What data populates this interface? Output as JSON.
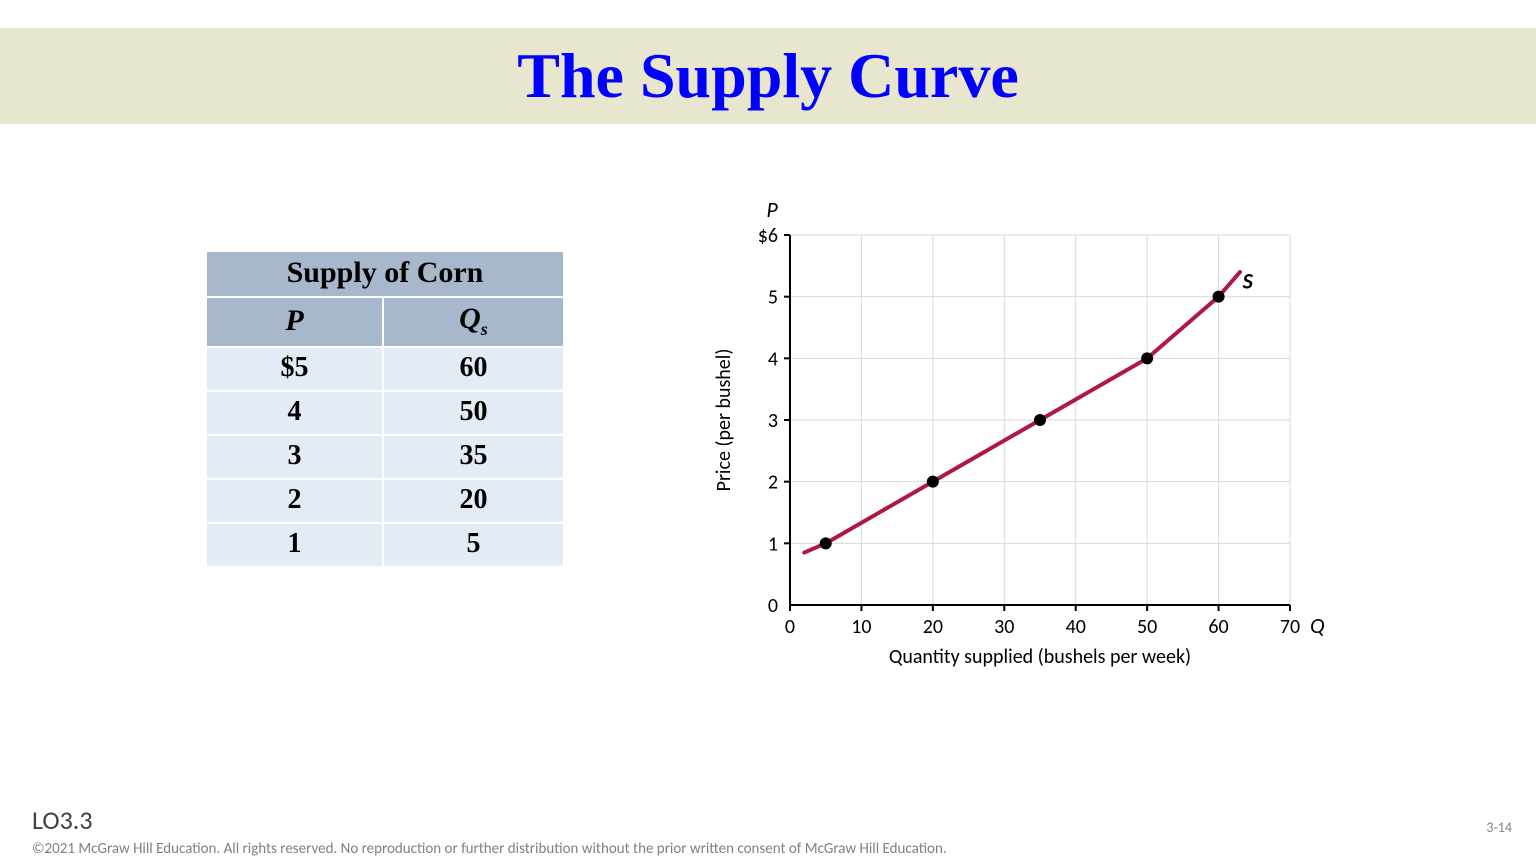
{
  "title": {
    "text": "The Supply Curve",
    "color": "#0000ff",
    "band_color": "#e8e6cf"
  },
  "table": {
    "title": "Supply of Corn",
    "header_p": "P",
    "header_q_base": "Q",
    "header_q_sub": "s",
    "header_bg": "#a7b7cc",
    "row_bg": "#e3ebf4",
    "text_color": "#000000",
    "rows": [
      {
        "p": "$5",
        "q": "60"
      },
      {
        "p": "4",
        "q": "50"
      },
      {
        "p": "3",
        "q": "35"
      },
      {
        "p": "2",
        "q": "20"
      },
      {
        "p": "1",
        "q": "5"
      }
    ]
  },
  "chart": {
    "type": "line",
    "series_label": "S",
    "p_axis_label": "P",
    "q_axis_label": "Q",
    "y_label": "Price (per bushel)",
    "x_label": "Quantity supplied (bushels per week)",
    "y_ticks": [
      "0",
      "1",
      "2",
      "3",
      "4",
      "5",
      "$6"
    ],
    "x_ticks": [
      "0",
      "10",
      "20",
      "30",
      "40",
      "50",
      "60",
      "70"
    ],
    "xlim": [
      0,
      70
    ],
    "ylim": [
      0,
      6
    ],
    "points": [
      {
        "q": 5,
        "p": 1
      },
      {
        "q": 20,
        "p": 2
      },
      {
        "q": 35,
        "p": 3
      },
      {
        "q": 50,
        "p": 4
      },
      {
        "q": 60,
        "p": 5
      }
    ],
    "line_extend_start": {
      "q": 2,
      "p": 0.85
    },
    "line_extend_end": {
      "q": 63,
      "p": 5.4
    },
    "line_color": "#b01842",
    "line_width": 4,
    "point_color": "#000000",
    "point_radius": 6,
    "grid_color": "#d9d9d9",
    "axis_color": "#000000",
    "background_color": "#ffffff",
    "tick_fontsize": 20,
    "label_fontsize": 20
  },
  "footer": {
    "lo": "LO3.3",
    "copyright": "©2021 McGraw Hill Education. All rights reserved. No reproduction or further distribution without the prior written consent of McGraw Hill Education.",
    "page_num": "3-14"
  }
}
